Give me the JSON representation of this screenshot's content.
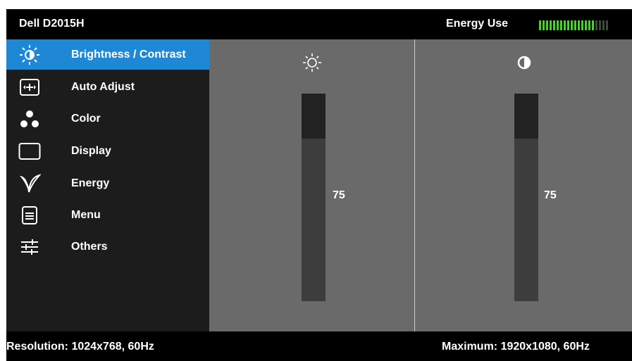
{
  "header": {
    "model": "Dell D2015H",
    "energy_label": "Energy Use",
    "energy_level": {
      "filled": 16,
      "total": 20
    },
    "energy_colors": {
      "filled": "#4bd12c",
      "empty": "#3c4a3c"
    }
  },
  "menu": {
    "active_color": "#1e88d6",
    "items": [
      {
        "label": "Brightness / Contrast",
        "icon": "brightness-icon",
        "active": true
      },
      {
        "label": "Auto Adjust",
        "icon": "auto-adjust-icon",
        "active": false
      },
      {
        "label": "Color",
        "icon": "color-icon",
        "active": false
      },
      {
        "label": "Display",
        "icon": "display-icon",
        "active": false
      },
      {
        "label": "Energy",
        "icon": "energy-leaf-icon",
        "active": false
      },
      {
        "label": "Menu",
        "icon": "menu-icon",
        "active": false
      },
      {
        "label": "Others",
        "icon": "others-sliders-icon",
        "active": false
      }
    ]
  },
  "brightness": {
    "icon": "sun-icon",
    "value": "75",
    "level": 0.75
  },
  "contrast": {
    "icon": "contrast-icon",
    "value": "75",
    "level": 0.75
  },
  "footer": {
    "resolution": "Resolution: 1024x768, 60Hz",
    "maximum": "Maximum: 1920x1080, 60Hz"
  }
}
